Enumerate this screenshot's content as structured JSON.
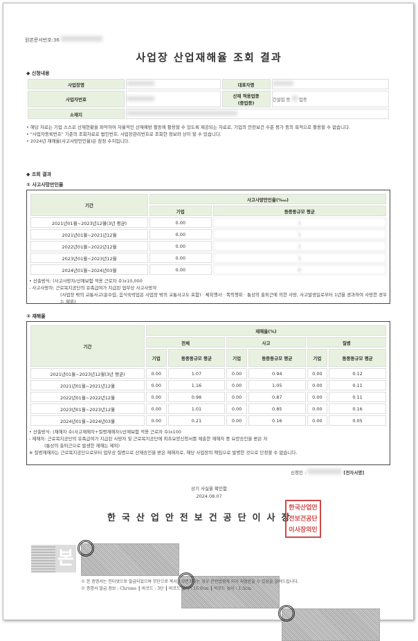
{
  "doc_number_label": "원본문서번호:36",
  "title": "사업장 산업재해율 조회 결과",
  "application": {
    "heading": "◆ 신청내용",
    "biz_name_label": "사업장명",
    "rep_label": "대표자명",
    "biz_no_label": "사업자번호",
    "industry_label": "산재 적용업종",
    "industry_label2": "(중업종)",
    "industry_value": "건설업 등",
    "industry_suffix": "업종",
    "address_label": "소재지"
  },
  "notices": [
    "• 해당 자료는 기업 스스로 산재현황을 파악하여 자율적인 산재예방 활동에 활용할 수 있도록 제공되는 자료로, 기업의 안전보건 수준 평가 등의 목적으로 활용할 수 없습니다.",
    "• \"사업자등록번호\" 기준의 조회자료로 법인번호, 사업장관리번호로 조회한 정보와 상이 할 수 있습니다.",
    "• 2024년 재해율(사고사망만인율)은 잠정 수치입니다."
  ],
  "results_heading": "◆ 조회 결과",
  "fatality": {
    "heading": "① 사고사망만인율",
    "col_period": "기간",
    "col_group": "사고사망만인율(‱)",
    "col_company": "기업",
    "col_avg": "동종동규모 평균",
    "rows": [
      [
        "2021년01월~2023년12월(3년 평균)",
        "0.00",
        "1"
      ],
      [
        "2021년01월~2021년12월",
        "0.00",
        "1"
      ],
      [
        "2022년01월~2022년12월",
        "0.00",
        "1"
      ],
      [
        "2023년01월~2023년12월",
        "0.00",
        "1"
      ],
      [
        "2024년01월~2024년03월",
        "0.00",
        "0"
      ]
    ],
    "notes": [
      "• 산출방식: (사고사망자/산재보험 적용 근로자 수)x10,000",
      "- 사고사망자: 근로복지공단의 유족급여가 지급된 업무상 사고사망자",
      "(사업장 밖의 교통사고(운수업, 음식숙박업은 사업장 밖의 교통사고도 포함) · 체육행사 · 폭력행위 · 통상의 출퇴근에 의한 사망, 사고발생일로부터 1년을 경과하여 사망한 경우는 제외)"
    ]
  },
  "injury": {
    "heading": "② 재해율",
    "col_period": "기간",
    "col_group": "재해율(%)",
    "groups": [
      "전체",
      "사고",
      "질병"
    ],
    "col_company": "기업",
    "col_avg": "동종동규모 평균",
    "rows": [
      [
        "2021년01월~2023년12월(3년 평균)",
        "0.00",
        "1.07",
        "0.00",
        "0.94",
        "0.00",
        "0.12"
      ],
      [
        "2021년01월~2021년12월",
        "0.00",
        "1.16",
        "0.00",
        "1.05",
        "0.00",
        "0.11"
      ],
      [
        "2022년01월~2022년12월",
        "0.00",
        "0.98",
        "0.00",
        "0.87",
        "0.00",
        "0.11"
      ],
      [
        "2023년01월~2023년12월",
        "0.00",
        "1.01",
        "0.00",
        "0.85",
        "0.00",
        "0.16"
      ],
      [
        "2024년01월~2024년03월",
        "0.00",
        "0.21",
        "0.00",
        "0.16",
        "0.00",
        "0.05"
      ]
    ],
    "notes": [
      "• 산출방식: (재해자 수(사고재해자+질병재해자)/산재보험 적용 근로자 수)x100",
      "- 재해자: 근로복지공단의 유족급여가 지급된 사망자 및 근로복지공단에 최초요양신청서를 제출한 재해자 중 요양승인을 받은 자",
      "(통상의 출퇴근으로 발생한 재해는 제외)",
      "※ 질병재해자는 근로복지공단으로부터 업무상 질병으로 산재승인을 받은 재해자로, 해당 사업장의 책임으로 발병한 것으로 단정할 수 없습니다."
    ]
  },
  "applicant_label": "신청인 :",
  "e_signature": "[전자서명]",
  "confirm_text": "상기 사실을 확인함",
  "date": "2024.08.07",
  "issuer": "한국산업안전보건공단이사장",
  "seal_text": "한국산업안전보건공단이사장의인",
  "original_mark": "본",
  "footer": [
    "※ 본 증명서는 인터넷으로 발급되었으며 무단으로 복사, 위/변조하는 경우 관련법령에 의거 처벌받을 수 있음을 알려드립니다.",
    "※ 증명서 발급 정보 : Chrome ┃ 바코드 : 3단 ┃ 바코드 넓이 : 16.0cm ┃ 바코드 높이 : 1.5cm"
  ],
  "colors": {
    "header_bg": "#e8f1df",
    "seal": "#c62828"
  }
}
